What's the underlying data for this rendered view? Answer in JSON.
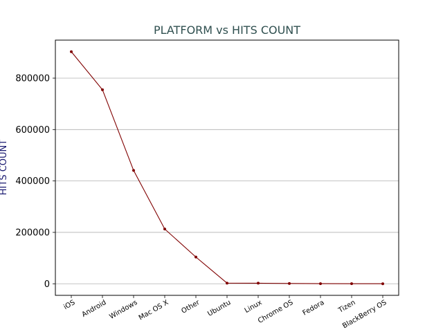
{
  "chart_data": {
    "type": "line",
    "title": "PLATFORM vs HITS COUNT",
    "xlabel": "",
    "ylabel": "HITS COUNT",
    "categories": [
      "iOS",
      "Android",
      "Windows",
      "Mac OS X",
      "Other",
      "Ubuntu",
      "Linux",
      "Chrome OS",
      "Fedora",
      "Tizen",
      "BlackBerry OS"
    ],
    "series": [
      {
        "values": [
          903000,
          755000,
          441000,
          213000,
          104000,
          2500,
          2300,
          1200,
          500,
          300,
          200
        ],
        "color": "#800000"
      }
    ],
    "ylim": [
      -45000,
      948000
    ],
    "yticks": [
      0,
      200000,
      400000,
      600000,
      800000
    ],
    "ytick_labels": [
      "0",
      "200000",
      "400000",
      "600000",
      "800000"
    ],
    "grid": "horizontal",
    "colors": {
      "title": "#2f4f4f",
      "ylabel": "#191970",
      "line": "#800000",
      "grid": "#b0b0b0"
    }
  }
}
